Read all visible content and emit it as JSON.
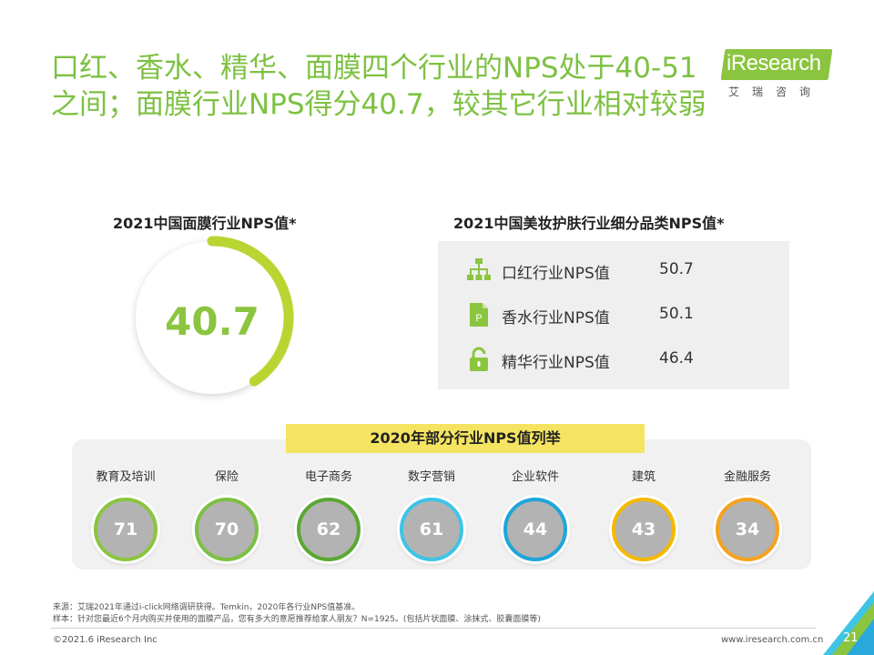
{
  "title": {
    "line1": "口红、香水、精华、面膜四个行业的NPS处于40-51",
    "line2": "之间；面膜行业NPS得分40.7，较其它行业相对较弱"
  },
  "logo": {
    "text_i": "i",
    "text_rest": "Research",
    "sub": "艾瑞咨询"
  },
  "colors": {
    "accent": "#8bc53f",
    "banner": "#f5e461",
    "circle_fill": "#b3b3b3"
  },
  "left_section": {
    "title": "2021中国面膜行业NPS值*",
    "value": "40.7",
    "gauge_fraction": 0.407
  },
  "right_section": {
    "title": "2021中国美妆护肤行业细分品类NPS值*",
    "items": [
      {
        "icon": "org-chart-icon",
        "label": "口红行业NPS值",
        "value": "50.7"
      },
      {
        "icon": "document-p-icon",
        "label": "香水行业NPS值",
        "value": "50.1"
      },
      {
        "icon": "lock-icon",
        "label": "精华行业NPS值",
        "value": "46.4"
      }
    ]
  },
  "bottom_section": {
    "title": "2020年部分行业NPS值列举",
    "industries": [
      {
        "name": "教育及培训",
        "value": "71",
        "ring": "#8bc53f"
      },
      {
        "name": "保险",
        "value": "70",
        "ring": "#7cc043"
      },
      {
        "name": "电子商务",
        "value": "62",
        "ring": "#5aa832"
      },
      {
        "name": "数字营销",
        "value": "61",
        "ring": "#3fc4e6"
      },
      {
        "name": "企业软件",
        "value": "44",
        "ring": "#1ea6da"
      },
      {
        "name": "建筑",
        "value": "43",
        "ring": "#f5b800"
      },
      {
        "name": "金融服务",
        "value": "34",
        "ring": "#f5a21e"
      }
    ]
  },
  "footer": {
    "source": "来源：艾瑞2021年通过i-click网络调研获得。Temkin，2020年各行业NPS值基准。",
    "sample": "样本：针对您最近6个月内购买并使用的面膜产品，您有多大的意愿推荐给家人朋友？N=1925。(包括片状面膜、涂抹式、胶囊面膜等)",
    "copyright": "©2021.6 iResearch Inc",
    "website": "www.iresearch.com.cn",
    "page": "21"
  }
}
